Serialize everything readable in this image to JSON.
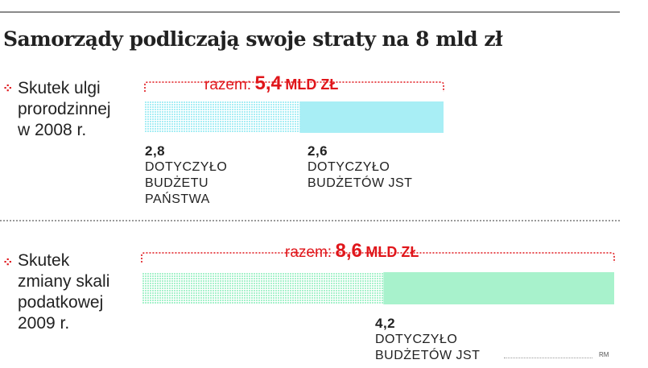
{
  "title": "Samorządy podliczają swoje straty na 8 mld zł",
  "credit": "RM",
  "colors": {
    "accent": "#e0161b"
  },
  "chart_data": {
    "type": "bar",
    "orientation": "horizontal-stacked",
    "rows": [
      {
        "label_lines": [
          "Skutek ulgi",
          "prorodzinnej",
          "w 2008 r."
        ],
        "total_label": "razem:",
        "total_value": "5,4",
        "total_unit": "MLD ZŁ",
        "total": 5.4,
        "segments": [
          {
            "value": 2.8,
            "value_text": "2,8",
            "desc_lines": [
              "DOTYCZYŁO",
              "BUDŻETU",
              "PAŃSTWA"
            ],
            "style": "dotted",
            "color": "#a8eef5"
          },
          {
            "value": 2.6,
            "value_text": "2,6",
            "desc_lines": [
              "DOTYCZYŁO",
              "BUDŻETÓW JST"
            ],
            "style": "solid",
            "color": "#a8eef5"
          }
        ]
      },
      {
        "label_lines": [
          "Skutek",
          "zmiany skali",
          "podatkowej",
          "2009 r."
        ],
        "total_label": "razem:",
        "total_value": "8,6",
        "total_unit": "MLD ZŁ",
        "total": 8.6,
        "segments": [
          {
            "value": 4.4,
            "style": "dotted",
            "color": "#a8f2cc"
          },
          {
            "value": 4.2,
            "value_text": "4,2",
            "desc_lines": [
              "DOTYCZYŁO",
              "BUDŻETÓW JST"
            ],
            "style": "solid",
            "color": "#a8f2cc"
          }
        ]
      }
    ]
  }
}
